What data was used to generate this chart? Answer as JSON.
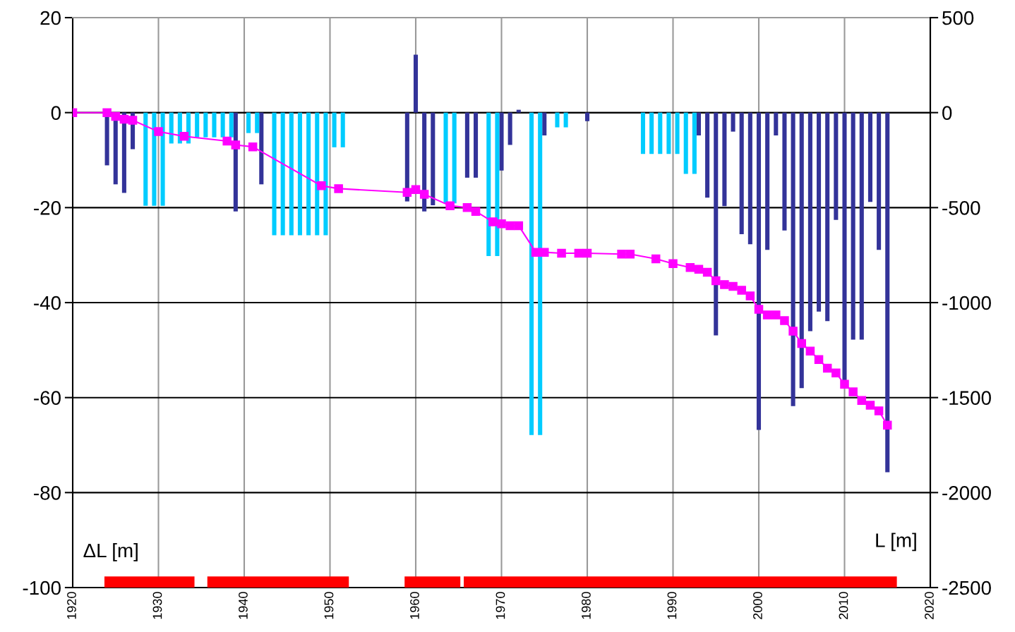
{
  "chart_data": {
    "type": "bar",
    "ylabel": "ΔL [m]",
    "y2label": "L [m]",
    "xlim": [
      1920,
      2020
    ],
    "xticks": [
      1920,
      1930,
      1940,
      1950,
      1960,
      1970,
      1980,
      1990,
      2000,
      2010,
      2020
    ],
    "ylim": [
      -100,
      20
    ],
    "yticks": [
      -100,
      -80,
      -60,
      -40,
      -20,
      0,
      20
    ],
    "y2lim": [
      -2500,
      500
    ],
    "y2ticks": [
      -2500,
      -2000,
      -1500,
      -1000,
      -500,
      0,
      500
    ],
    "grid": true,
    "legend": false,
    "series": [
      {
        "type": "line",
        "color": "#ff0000",
        "marker": "none",
        "line_style": "solid",
        "x": [
          1923.7,
          1934.2,
          1935,
          1935.7,
          1952.2,
          1955,
          1958.7,
          1965.2,
          1965.4,
          1965.6,
          2016.1
        ],
        "values": [
          -99,
          -99,
          null,
          -99,
          -99,
          null,
          -99,
          -99,
          null,
          -99,
          -99
        ]
      },
      {
        "color": "#333399",
        "x": [
          1924,
          1925,
          1926,
          1927,
          1939,
          1942,
          1959,
          1960,
          1961,
          1962,
          1966,
          1967,
          1970,
          1971,
          1972,
          1975,
          1980,
          1993,
          1994,
          1995,
          1996,
          1997,
          1998,
          1999,
          2000,
          2001,
          2002,
          2003,
          2004,
          2005,
          2006,
          2007,
          2008,
          2009,
          2010,
          2011,
          2012,
          2013,
          2014,
          2015
        ],
        "values": [
          -11.1,
          -15.1,
          -16.9,
          -7.7,
          -20.8,
          -15.1,
          -18.7,
          12.2,
          -20.8,
          -19.5,
          -13.7,
          -13.7,
          -12.2,
          -6.8,
          0.6,
          -4.8,
          -1.8,
          -4.8,
          -17.9,
          -46.9,
          -19.7,
          -4.0,
          -25.6,
          -27.7,
          -66.8,
          -28.9,
          -4.8,
          -24.8,
          -61.8,
          -58.0,
          -46.0,
          -41.9,
          -43.9,
          -22.6,
          -56.4,
          -47.8,
          -47.8,
          -18.8,
          -28.9,
          -75.7
        ]
      },
      {
        "color": "#00ccff",
        "x": [
          1928.5,
          1929.5,
          1930.5,
          1931.5,
          1932.5,
          1933.5,
          1934.5,
          1935.5,
          1936.5,
          1937.5,
          1938.5,
          1940.5,
          1941.5,
          1943.5,
          1944.5,
          1945.5,
          1946.5,
          1947.5,
          1948.5,
          1949.5,
          1950.5,
          1951.5,
          1963.5,
          1964.5,
          1968.5,
          1969.5,
          1973.5,
          1974.5,
          1976.5,
          1977.5,
          1986.5,
          1987.5,
          1988.5,
          1989.5,
          1990.5,
          1991.5,
          1992.5
        ],
        "values": [
          -19.6,
          -19.6,
          -19.6,
          -6.5,
          -6.5,
          -6.5,
          -5.2,
          -5.2,
          -5.2,
          -5.2,
          -5.2,
          -4.3,
          -4.3,
          -25.8,
          -25.8,
          -25.8,
          -25.8,
          -25.8,
          -25.8,
          -25.8,
          -7.3,
          -7.3,
          -19.1,
          -19.1,
          -30.2,
          -30.2,
          -67.9,
          -67.9,
          -3.1,
          -3.1,
          -8.7,
          -8.7,
          -8.7,
          -8.7,
          -8.7,
          -12.9,
          -12.9
        ]
      },
      {
        "type": "line",
        "axis": "y2",
        "color": "#ff00ff",
        "marker": "square",
        "line_style": "solid",
        "x": [
          1920,
          1924,
          1925,
          1926,
          1927,
          1930,
          1933,
          1938,
          1939,
          1941,
          1949,
          1951,
          1959,
          1960,
          1961,
          1964,
          1966,
          1967,
          1969,
          1970,
          1971,
          1972,
          1974,
          1975,
          1977,
          1979,
          1980,
          1984,
          1985,
          1988,
          1990,
          1992,
          1993,
          1994,
          1995,
          1996,
          1997,
          1998,
          1999,
          2000,
          2001,
          2002,
          2003,
          2004,
          2005,
          2006,
          2007,
          2008,
          2009,
          2010,
          2011,
          2012,
          2013,
          2014,
          2015
        ],
        "values": [
          0,
          0,
          -20,
          -35,
          -40,
          -100,
          -125,
          -150,
          -170,
          -180,
          -385,
          -400,
          -420,
          -405,
          -430,
          -490,
          -500,
          -520,
          -575,
          -585,
          -595,
          -595,
          -735,
          -735,
          -740,
          -740,
          -740,
          -745,
          -745,
          -770,
          -795,
          -815,
          -825,
          -840,
          -885,
          -905,
          -915,
          -935,
          -965,
          -1035,
          -1065,
          -1065,
          -1095,
          -1150,
          -1215,
          -1255,
          -1300,
          -1345,
          -1370,
          -1430,
          -1470,
          -1515,
          -1540,
          -1570,
          -1645
        ]
      }
    ]
  }
}
